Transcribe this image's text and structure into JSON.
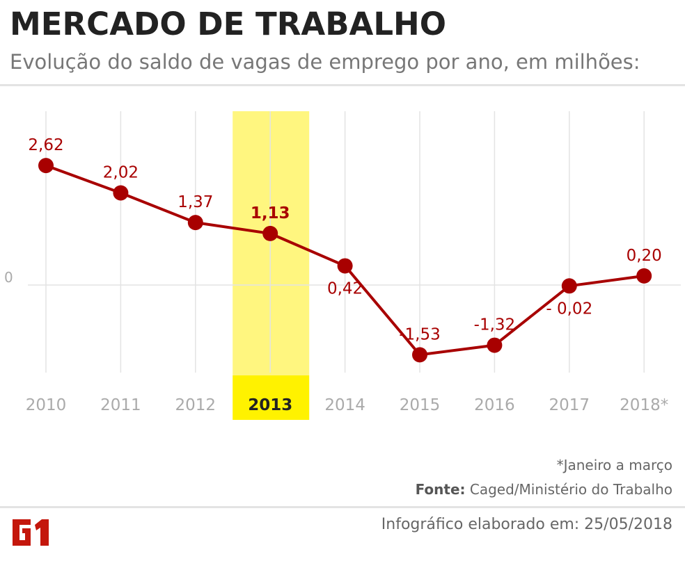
{
  "header": {
    "title": "MERCADO DE TRABALHO",
    "subtitle": "Evolução do saldo de vagas de emprego por ano, em milhões:"
  },
  "chart_data": {
    "type": "line",
    "title": "MERCADO DE TRABALHO",
    "subtitle": "Evolução do saldo de vagas de emprego por ano, em milhões:",
    "categories": [
      "2010",
      "2011",
      "2012",
      "2013",
      "2014",
      "2015",
      "2016",
      "2017",
      "2018*"
    ],
    "values": [
      2.62,
      2.02,
      1.37,
      1.13,
      0.42,
      -1.53,
      -1.32,
      -0.02,
      0.2
    ],
    "data_labels": [
      "2,62",
      "2,02",
      "1,37",
      "1,13",
      "0,42",
      "-1,53",
      "-1,32",
      "- 0,02",
      "0,20"
    ],
    "y_tick_labels": [
      "0"
    ],
    "highlight_category": "2013",
    "grid": "vertical",
    "colors": {
      "line": "#a80000",
      "highlight": "#fff67f",
      "highlight_label": "#fff200",
      "grid": "#e3e3e3",
      "tick": "#aaaaaa"
    }
  },
  "footer": {
    "note": "*Janeiro a março",
    "source_label": "Fonte:",
    "source": " Caged/Ministério do Trabalho",
    "credit": "Infográfico elaborado em: 25/05/2018",
    "logo": "G1"
  }
}
